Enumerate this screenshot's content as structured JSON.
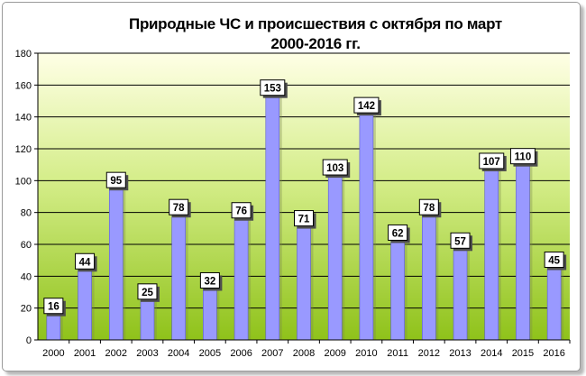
{
  "chart_data": {
    "type": "bar",
    "title_lines": [
      "Природные ЧС и происшествия с октября по март",
      "2000-2016 гг."
    ],
    "categories": [
      "2000",
      "2001",
      "2002",
      "2003",
      "2004",
      "2005",
      "2006",
      "2007",
      "2008",
      "2009",
      "2010",
      "2011",
      "2012",
      "2013",
      "2014",
      "2015",
      "2016"
    ],
    "values": [
      16,
      44,
      95,
      25,
      78,
      32,
      76,
      153,
      71,
      103,
      142,
      62,
      78,
      57,
      107,
      110,
      45
    ],
    "ylim": [
      0,
      180
    ],
    "yticks": [
      0,
      20,
      40,
      60,
      80,
      100,
      120,
      140,
      160,
      180
    ],
    "grid": true,
    "legend": "none",
    "colors": {
      "bar": "#9999ff",
      "plot_top": "#ffffe6",
      "plot_mid": "#d4ed88",
      "plot_bottom": "#8fc21a",
      "label_box": "#ffffff"
    }
  }
}
